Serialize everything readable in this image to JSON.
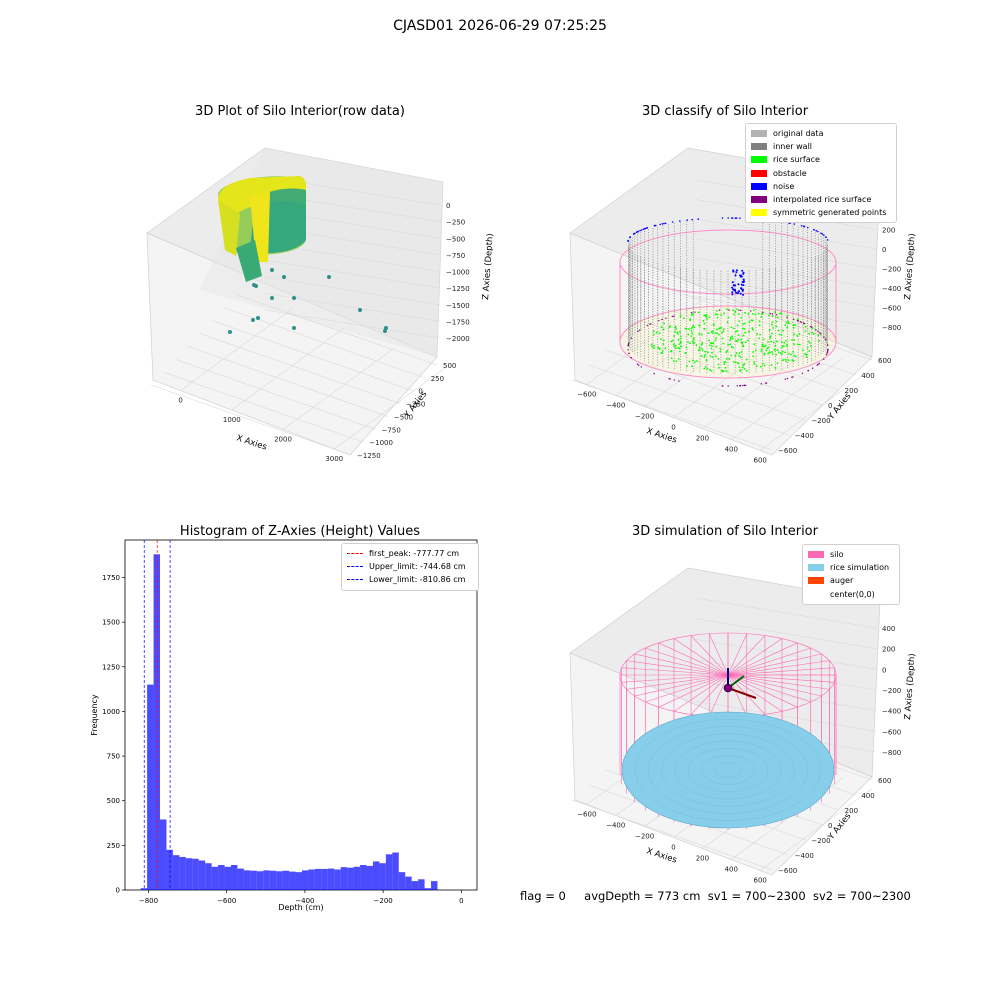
{
  "suptitle": "CJASD01 2026-06-29 07:25:25",
  "panels": {
    "raw": {
      "title": "3D Plot of Silo Interior(row data)",
      "xlabel": "X Axies",
      "ylabel": "Y Axies",
      "zlabel": "Z Axies (Depth)",
      "x_ticks": [
        "0",
        "1000",
        "2000",
        "3000"
      ],
      "y_ticks": [
        "500",
        "250",
        "0",
        "−250",
        "−500",
        "−750",
        "−1000",
        "−1250"
      ],
      "z_ticks": [
        "0",
        "−250",
        "−500",
        "−750",
        "−1000",
        "−1250",
        "−1500",
        "−1750",
        "−2000"
      ]
    },
    "classify": {
      "title": "3D classify of Silo Interior",
      "xlabel": "X Axies",
      "ylabel": "Y Axies",
      "zlabel": "Z Axies (Depth)",
      "x_ticks": [
        "−600",
        "−400",
        "−200",
        "0",
        "200",
        "400",
        "600"
      ],
      "y_ticks": [
        "600",
        "400",
        "200",
        "0",
        "−200",
        "−400",
        "−600"
      ],
      "z_ticks": [
        "400",
        "200",
        "0",
        "−200",
        "−400",
        "−600",
        "−800"
      ],
      "legend": [
        {
          "label": "original data",
          "color": "#b3b3b3"
        },
        {
          "label": "inner wall",
          "color": "#808080"
        },
        {
          "label": "rice surface",
          "color": "#00ff00"
        },
        {
          "label": "obstacle",
          "color": "#ff0000"
        },
        {
          "label": "noise",
          "color": "#0000ff"
        },
        {
          "label": "interpolated rice surface",
          "color": "#800080"
        },
        {
          "label": "symmetric generated points",
          "color": "#ffff00"
        }
      ]
    },
    "simulation": {
      "title": "3D simulation of Silo Interior",
      "xlabel": "X Axies",
      "ylabel": "Y Axies",
      "zlabel": "Z Axies (Depth)",
      "x_ticks": [
        "−600",
        "−400",
        "−200",
        "0",
        "200",
        "400",
        "600"
      ],
      "y_ticks": [
        "600",
        "400",
        "200",
        "0",
        "−200",
        "−400",
        "−600"
      ],
      "z_ticks": [
        "400",
        "200",
        "0",
        "−200",
        "−400",
        "−600",
        "−800"
      ],
      "legend": [
        {
          "label": "silo",
          "color": "#ff69b4"
        },
        {
          "label": "rice simulation",
          "color": "#87ceeb"
        },
        {
          "label": "auger",
          "color": "#ff4500"
        },
        {
          "label": "center(0,0)",
          "color": "#ffffff"
        }
      ]
    }
  },
  "status": {
    "flag": "flag = 0",
    "avg": "avgDepth = 773 cm",
    "sv1": "sv1 = 700~2300",
    "sv2": "sv2 = 700~2300"
  },
  "chart_data": {
    "type": "bar",
    "title": "Histogram of Z-Axies (Height) Values",
    "xlabel": "Depth (cm)",
    "ylabel": "Frequency",
    "xlim": [
      -860,
      40
    ],
    "ylim": [
      0,
      1960
    ],
    "x_ticks": [
      -800,
      -600,
      -400,
      -200,
      0
    ],
    "x_tick_labels": [
      "−800",
      "−600",
      "−400",
      "−200",
      "0"
    ],
    "y_ticks": [
      0,
      250,
      500,
      750,
      1000,
      1250,
      1500,
      1750
    ],
    "bar_color": "#0000ff",
    "bin_width": 16.5,
    "bin_start": -820,
    "values": [
      10,
      1150,
      1880,
      395,
      225,
      195,
      185,
      178,
      175,
      165,
      150,
      130,
      140,
      130,
      140,
      120,
      110,
      108,
      105,
      110,
      108,
      105,
      108,
      103,
      100,
      110,
      115,
      118,
      118,
      120,
      115,
      128,
      125,
      130,
      140,
      135,
      160,
      150,
      200,
      210,
      100,
      75,
      50,
      60,
      10,
      50
    ],
    "reference_lines": [
      {
        "label": "first_peak: -777.77 cm",
        "value": -777.77,
        "color": "#ff0000"
      },
      {
        "label": "Upper_limit: -744.68 cm",
        "value": -744.68,
        "color": "#0000ff"
      },
      {
        "label": "Lower_limit: -810.86 cm",
        "value": -810.86,
        "color": "#0000ff"
      }
    ]
  }
}
